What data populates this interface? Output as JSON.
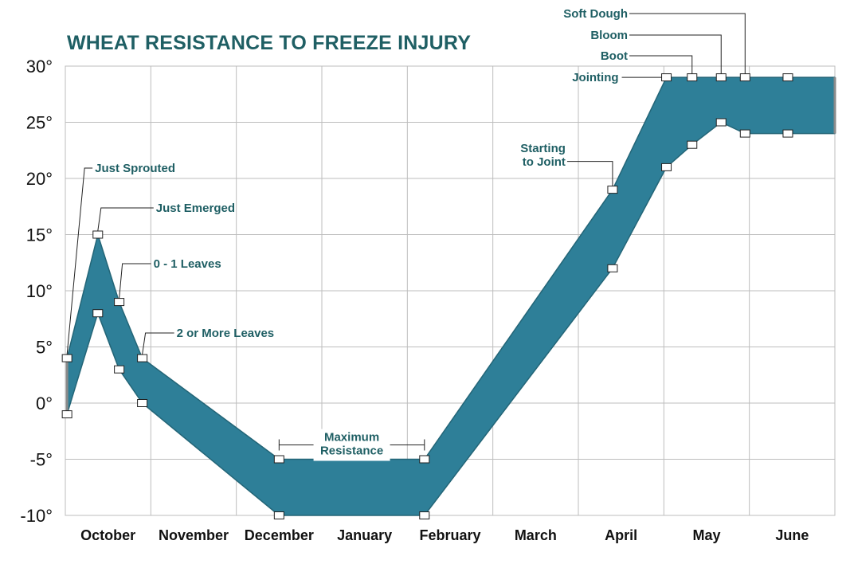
{
  "chart_data": {
    "type": "area",
    "title": "WHEAT RESISTANCE TO FREEZE INJURY",
    "xlabel": "",
    "ylabel": "",
    "ylim": [
      -10,
      30
    ],
    "y_ticks": [
      "30°",
      "25°",
      "20°",
      "15°",
      "10°",
      "5°",
      "0°",
      "-5°",
      "-10°"
    ],
    "y_tick_values": [
      30,
      25,
      20,
      15,
      10,
      5,
      0,
      -5,
      -10
    ],
    "categories": [
      "October",
      "November",
      "December",
      "January",
      "February",
      "March",
      "April",
      "May",
      "June"
    ],
    "x_range": [
      0,
      9
    ],
    "grid": true,
    "colors": {
      "band": "#2e7f98",
      "band_edge": "#236577",
      "grid": "#bdbdbd",
      "annotation": "#1f5f64"
    },
    "series": [
      {
        "x": [
          0.02,
          0.38,
          0.63,
          0.9,
          2.5,
          4.2,
          6.4,
          7.03,
          7.33,
          7.67,
          7.95,
          8.45,
          9.0
        ],
        "values": [
          4,
          15,
          9,
          4,
          -5,
          -5,
          19,
          29,
          29,
          29,
          29,
          29,
          29
        ]
      },
      {
        "x": [
          0.02,
          0.38,
          0.63,
          0.9,
          2.5,
          4.2,
          6.4,
          7.03,
          7.33,
          7.67,
          7.95,
          8.45,
          9.0
        ],
        "values": [
          -1,
          8,
          3,
          0,
          -10,
          -10,
          12,
          21,
          23,
          25,
          24,
          24,
          24
        ]
      }
    ],
    "markers": [
      {
        "x": 0.02,
        "y": 4
      },
      {
        "x": 0.02,
        "y": -1
      },
      {
        "x": 0.38,
        "y": 15
      },
      {
        "x": 0.38,
        "y": 8
      },
      {
        "x": 0.63,
        "y": 9
      },
      {
        "x": 0.63,
        "y": 3
      },
      {
        "x": 0.9,
        "y": 4
      },
      {
        "x": 0.9,
        "y": 0
      },
      {
        "x": 2.5,
        "y": -5
      },
      {
        "x": 2.5,
        "y": -10
      },
      {
        "x": 4.2,
        "y": -5
      },
      {
        "x": 4.2,
        "y": -10
      },
      {
        "x": 6.4,
        "y": 19
      },
      {
        "x": 6.4,
        "y": 12
      },
      {
        "x": 7.03,
        "y": 29
      },
      {
        "x": 7.03,
        "y": 21
      },
      {
        "x": 7.33,
        "y": 29
      },
      {
        "x": 7.33,
        "y": 23
      },
      {
        "x": 7.67,
        "y": 29
      },
      {
        "x": 7.67,
        "y": 25
      },
      {
        "x": 7.95,
        "y": 29
      },
      {
        "x": 7.95,
        "y": 24
      },
      {
        "x": 8.45,
        "y": 29
      },
      {
        "x": 8.45,
        "y": 24
      }
    ],
    "annotations": [
      {
        "lines": [
          "Jointing"
        ],
        "x": 7.03,
        "y": 29,
        "style": "left-inline"
      },
      {
        "lines": [
          "Boot"
        ],
        "x": 7.33,
        "y": 29,
        "style": "left-elbow-top"
      },
      {
        "lines": [
          "Bloom"
        ],
        "x": 7.67,
        "y": 29,
        "style": "left-elbow-top"
      },
      {
        "lines": [
          "Soft Dough"
        ],
        "x": 7.95,
        "y": 29,
        "style": "left-elbow-top"
      },
      {
        "lines": [
          "Starting",
          "to Joint"
        ],
        "x": 6.4,
        "y": 19,
        "style": "left-elbow-top"
      },
      {
        "lines": [
          "Just Sprouted"
        ],
        "x": 0.02,
        "y": 4,
        "style": "right-elbow-top"
      },
      {
        "lines": [
          "Just Emerged"
        ],
        "x": 0.38,
        "y": 15,
        "style": "right-elbow-top"
      },
      {
        "lines": [
          "0 - 1 Leaves"
        ],
        "x": 0.63,
        "y": 9,
        "style": "right-elbow-top"
      },
      {
        "lines": [
          "2 or More Leaves"
        ],
        "x": 0.9,
        "y": 4,
        "style": "right-elbow-top"
      },
      {
        "lines": [
          "Maximum",
          "Resistance"
        ],
        "x_from": 2.5,
        "x_to": 4.2,
        "y": -5,
        "style": "bracket"
      }
    ]
  }
}
